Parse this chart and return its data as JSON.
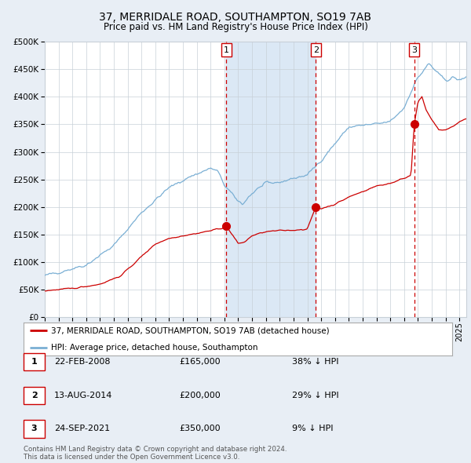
{
  "title": "37, MERRIDALE ROAD, SOUTHAMPTON, SO19 7AB",
  "subtitle": "Price paid vs. HM Land Registry's House Price Index (HPI)",
  "title_fontsize": 10,
  "subtitle_fontsize": 8.5,
  "bg_color": "#e8eef5",
  "plot_bg_color": "#ffffff",
  "grid_color": "#c8d0d8",
  "red_line_color": "#cc0000",
  "blue_line_color": "#7aafd4",
  "shade_color": "#dbe8f5",
  "dashed_line_color": "#cc0000",
  "sale_dates": [
    2008.14,
    2014.62,
    2021.73
  ],
  "sale_prices": [
    165000,
    200000,
    350000
  ],
  "sale_labels": [
    "1",
    "2",
    "3"
  ],
  "legend_red": "37, MERRIDALE ROAD, SOUTHAMPTON, SO19 7AB (detached house)",
  "legend_blue": "HPI: Average price, detached house, Southampton",
  "table_rows": [
    [
      "1",
      "22-FEB-2008",
      "£165,000",
      "38% ↓ HPI"
    ],
    [
      "2",
      "13-AUG-2014",
      "£200,000",
      "29% ↓ HPI"
    ],
    [
      "3",
      "24-SEP-2021",
      "£350,000",
      "9% ↓ HPI"
    ]
  ],
  "footnote": "Contains HM Land Registry data © Crown copyright and database right 2024.\nThis data is licensed under the Open Government Licence v3.0.",
  "ylim": [
    0,
    500000
  ],
  "yticks": [
    0,
    50000,
    100000,
    150000,
    200000,
    250000,
    300000,
    350000,
    400000,
    450000,
    500000
  ],
  "xmin": 1995,
  "xmax": 2025.5,
  "hpi_keypoints": [
    [
      1995.0,
      75000
    ],
    [
      1998.0,
      95000
    ],
    [
      2000.0,
      130000
    ],
    [
      2002.0,
      190000
    ],
    [
      2004.0,
      235000
    ],
    [
      2005.5,
      255000
    ],
    [
      2007.0,
      270000
    ],
    [
      2007.5,
      265000
    ],
    [
      2008.0,
      240000
    ],
    [
      2008.8,
      215000
    ],
    [
      2009.3,
      205000
    ],
    [
      2009.8,
      220000
    ],
    [
      2010.5,
      235000
    ],
    [
      2011.0,
      242000
    ],
    [
      2012.0,
      245000
    ],
    [
      2013.0,
      252000
    ],
    [
      2014.0,
      258000
    ],
    [
      2015.0,
      285000
    ],
    [
      2016.0,
      315000
    ],
    [
      2017.0,
      345000
    ],
    [
      2018.0,
      348000
    ],
    [
      2019.0,
      350000
    ],
    [
      2020.0,
      355000
    ],
    [
      2021.0,
      380000
    ],
    [
      2021.5,
      410000
    ],
    [
      2022.0,
      435000
    ],
    [
      2022.5,
      450000
    ],
    [
      2022.8,
      460000
    ],
    [
      2023.0,
      455000
    ],
    [
      2023.5,
      440000
    ],
    [
      2024.0,
      430000
    ],
    [
      2024.5,
      435000
    ],
    [
      2025.0,
      430000
    ],
    [
      2025.5,
      435000
    ]
  ],
  "red_keypoints": [
    [
      1995.0,
      48000
    ],
    [
      1997.0,
      52000
    ],
    [
      1999.0,
      60000
    ],
    [
      2000.5,
      75000
    ],
    [
      2002.0,
      110000
    ],
    [
      2003.0,
      133000
    ],
    [
      2004.0,
      143000
    ],
    [
      2005.0,
      148000
    ],
    [
      2006.0,
      152000
    ],
    [
      2007.0,
      157000
    ],
    [
      2008.0,
      163000
    ],
    [
      2008.14,
      165000
    ],
    [
      2008.7,
      145000
    ],
    [
      2009.0,
      133000
    ],
    [
      2009.5,
      137000
    ],
    [
      2010.0,
      148000
    ],
    [
      2011.0,
      155000
    ],
    [
      2012.0,
      157000
    ],
    [
      2013.0,
      158000
    ],
    [
      2014.0,
      160000
    ],
    [
      2014.62,
      200000
    ],
    [
      2015.0,
      197000
    ],
    [
      2016.0,
      205000
    ],
    [
      2017.0,
      218000
    ],
    [
      2018.0,
      228000
    ],
    [
      2019.0,
      238000
    ],
    [
      2020.0,
      243000
    ],
    [
      2021.0,
      252000
    ],
    [
      2021.5,
      258000
    ],
    [
      2021.73,
      350000
    ],
    [
      2022.0,
      390000
    ],
    [
      2022.3,
      400000
    ],
    [
      2022.6,
      375000
    ],
    [
      2023.0,
      358000
    ],
    [
      2023.5,
      340000
    ],
    [
      2024.0,
      340000
    ],
    [
      2024.5,
      345000
    ],
    [
      2025.0,
      355000
    ],
    [
      2025.5,
      360000
    ]
  ]
}
